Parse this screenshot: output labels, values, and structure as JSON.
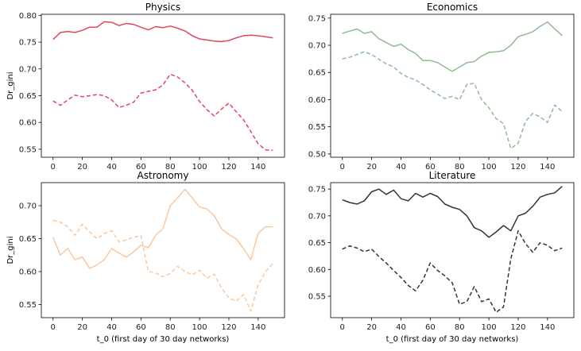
{
  "chart_data": [
    {
      "type": "line",
      "title": "Physics",
      "xlabel": "",
      "ylabel": "Dr_gini",
      "xlim": [
        -8,
        158
      ],
      "ylim": [
        0.535,
        0.802
      ],
      "xticks": [
        0,
        20,
        40,
        60,
        80,
        100,
        120,
        140
      ],
      "yticks": [
        0.55,
        0.6,
        0.65,
        0.7,
        0.75,
        0.8
      ],
      "ytick_labels": [
        "0.55",
        "0.60",
        "0.65",
        "0.70",
        "0.75",
        "0.80"
      ],
      "color": "#e0475e",
      "series": [
        {
          "style": "solid",
          "x": [
            0,
            5,
            10,
            15,
            20,
            25,
            30,
            35,
            40,
            45,
            50,
            55,
            60,
            65,
            70,
            75,
            80,
            85,
            90,
            95,
            100,
            105,
            110,
            115,
            120,
            125,
            130,
            135,
            140,
            145,
            150
          ],
          "values": [
            0.755,
            0.768,
            0.77,
            0.768,
            0.772,
            0.778,
            0.778,
            0.788,
            0.787,
            0.781,
            0.785,
            0.783,
            0.778,
            0.773,
            0.779,
            0.777,
            0.78,
            0.776,
            0.771,
            0.762,
            0.756,
            0.754,
            0.752,
            0.751,
            0.753,
            0.758,
            0.762,
            0.763,
            0.762,
            0.76,
            0.758
          ]
        },
        {
          "style": "dashed",
          "x": [
            0,
            5,
            10,
            15,
            20,
            25,
            30,
            35,
            40,
            45,
            50,
            55,
            60,
            65,
            70,
            75,
            80,
            85,
            90,
            95,
            100,
            105,
            110,
            115,
            120,
            125,
            130,
            135,
            140,
            145,
            150
          ],
          "values": [
            0.64,
            0.632,
            0.642,
            0.651,
            0.648,
            0.65,
            0.652,
            0.65,
            0.642,
            0.628,
            0.632,
            0.638,
            0.655,
            0.658,
            0.661,
            0.67,
            0.69,
            0.685,
            0.674,
            0.66,
            0.639,
            0.624,
            0.612,
            0.625,
            0.636,
            0.62,
            0.605,
            0.583,
            0.56,
            0.549,
            0.548
          ]
        }
      ]
    },
    {
      "type": "line",
      "title": "Economics",
      "xlabel": "",
      "ylabel": "",
      "xlim": [
        -8,
        158
      ],
      "ylim": [
        0.494,
        0.757
      ],
      "xticks": [
        0,
        20,
        40,
        60,
        80,
        100,
        120,
        140
      ],
      "yticks": [
        0.5,
        0.55,
        0.6,
        0.65,
        0.7,
        0.75
      ],
      "ytick_labels": [
        "0.50",
        "0.55",
        "0.60",
        "0.65",
        "0.70",
        "0.75"
      ],
      "color": "#8fbc8f",
      "series": [
        {
          "style": "solid",
          "x": [
            0,
            5,
            10,
            15,
            20,
            25,
            30,
            35,
            40,
            45,
            50,
            55,
            60,
            65,
            70,
            75,
            80,
            85,
            90,
            95,
            100,
            105,
            110,
            115,
            120,
            125,
            130,
            135,
            140,
            145,
            150
          ],
          "values": [
            0.722,
            0.726,
            0.73,
            0.722,
            0.725,
            0.712,
            0.705,
            0.698,
            0.702,
            0.692,
            0.685,
            0.672,
            0.672,
            0.668,
            0.66,
            0.652,
            0.66,
            0.668,
            0.67,
            0.68,
            0.687,
            0.688,
            0.69,
            0.7,
            0.716,
            0.72,
            0.725,
            0.735,
            0.743,
            0.73,
            0.718
          ]
        },
        {
          "style": "dashed",
          "x": [
            0,
            5,
            10,
            15,
            20,
            25,
            30,
            35,
            40,
            45,
            50,
            55,
            60,
            65,
            70,
            75,
            80,
            85,
            90,
            95,
            100,
            105,
            110,
            115,
            120,
            125,
            130,
            135,
            140,
            145,
            150
          ],
          "values": [
            0.675,
            0.678,
            0.683,
            0.688,
            0.683,
            0.674,
            0.666,
            0.66,
            0.648,
            0.641,
            0.636,
            0.628,
            0.618,
            0.61,
            0.602,
            0.606,
            0.6,
            0.628,
            0.63,
            0.6,
            0.585,
            0.565,
            0.556,
            0.51,
            0.52,
            0.56,
            0.575,
            0.568,
            0.558,
            0.59,
            0.578
          ]
        }
      ]
    },
    {
      "type": "line",
      "title": "Astronomy",
      "xlabel": "t_0 (first day of 30 day networks)",
      "ylabel": "Dr_gini",
      "xlim": [
        -8,
        158
      ],
      "ylim": [
        0.53,
        0.735
      ],
      "xticks": [
        0,
        20,
        40,
        60,
        80,
        100,
        120,
        140
      ],
      "yticks": [
        0.55,
        0.6,
        0.65,
        0.7
      ],
      "ytick_labels": [
        "0.55",
        "0.60",
        "0.65",
        "0.70"
      ],
      "color": "#f9c8a0",
      "series": [
        {
          "style": "solid",
          "x": [
            0,
            5,
            10,
            15,
            20,
            25,
            30,
            35,
            40,
            45,
            50,
            55,
            60,
            65,
            70,
            75,
            80,
            85,
            90,
            95,
            100,
            105,
            110,
            115,
            120,
            125,
            130,
            135,
            140,
            145,
            150
          ],
          "values": [
            0.652,
            0.625,
            0.635,
            0.618,
            0.622,
            0.605,
            0.61,
            0.618,
            0.635,
            0.628,
            0.622,
            0.63,
            0.64,
            0.636,
            0.655,
            0.665,
            0.7,
            0.712,
            0.725,
            0.712,
            0.698,
            0.695,
            0.685,
            0.665,
            0.656,
            0.65,
            0.635,
            0.618,
            0.658,
            0.668,
            0.668
          ]
        },
        {
          "style": "dashed",
          "x": [
            0,
            5,
            10,
            15,
            20,
            25,
            30,
            35,
            40,
            45,
            50,
            55,
            60,
            65,
            70,
            75,
            80,
            85,
            90,
            95,
            100,
            105,
            110,
            115,
            120,
            125,
            130,
            135,
            140,
            145,
            150
          ],
          "values": [
            0.678,
            0.675,
            0.668,
            0.655,
            0.672,
            0.66,
            0.65,
            0.658,
            0.662,
            0.645,
            0.648,
            0.652,
            0.655,
            0.6,
            0.598,
            0.592,
            0.597,
            0.608,
            0.6,
            0.595,
            0.602,
            0.59,
            0.596,
            0.575,
            0.56,
            0.555,
            0.565,
            0.54,
            0.58,
            0.6,
            0.612
          ]
        }
      ]
    },
    {
      "type": "line",
      "title": "Literature",
      "xlabel": "t_0 (first day of 30 day networks)",
      "ylabel": "",
      "xlim": [
        -8,
        158
      ],
      "ylim": [
        0.51,
        0.762
      ],
      "xticks": [
        0,
        20,
        40,
        60,
        80,
        100,
        120,
        140
      ],
      "yticks": [
        0.55,
        0.6,
        0.65,
        0.7,
        0.75
      ],
      "ytick_labels": [
        "0.55",
        "0.60",
        "0.65",
        "0.70",
        "0.75"
      ],
      "color": "#2d343b",
      "series": [
        {
          "style": "solid",
          "x": [
            0,
            5,
            10,
            15,
            20,
            25,
            30,
            35,
            40,
            45,
            50,
            55,
            60,
            65,
            70,
            75,
            80,
            85,
            90,
            95,
            100,
            105,
            110,
            115,
            120,
            125,
            130,
            135,
            140,
            145,
            150
          ],
          "values": [
            0.73,
            0.725,
            0.722,
            0.728,
            0.745,
            0.75,
            0.74,
            0.748,
            0.732,
            0.728,
            0.742,
            0.735,
            0.742,
            0.736,
            0.722,
            0.716,
            0.712,
            0.7,
            0.678,
            0.672,
            0.66,
            0.67,
            0.682,
            0.672,
            0.7,
            0.705,
            0.718,
            0.735,
            0.74,
            0.743,
            0.755
          ]
        },
        {
          "style": "dashed",
          "x": [
            0,
            5,
            10,
            15,
            20,
            25,
            30,
            35,
            40,
            45,
            50,
            55,
            60,
            65,
            70,
            75,
            80,
            85,
            90,
            95,
            100,
            105,
            110,
            115,
            120,
            125,
            130,
            135,
            140,
            145,
            150
          ],
          "values": [
            0.638,
            0.644,
            0.64,
            0.633,
            0.638,
            0.624,
            0.612,
            0.598,
            0.585,
            0.57,
            0.56,
            0.58,
            0.612,
            0.598,
            0.588,
            0.575,
            0.535,
            0.54,
            0.568,
            0.54,
            0.545,
            0.52,
            0.53,
            0.62,
            0.672,
            0.648,
            0.632,
            0.65,
            0.645,
            0.635,
            0.64
          ]
        }
      ]
    }
  ]
}
